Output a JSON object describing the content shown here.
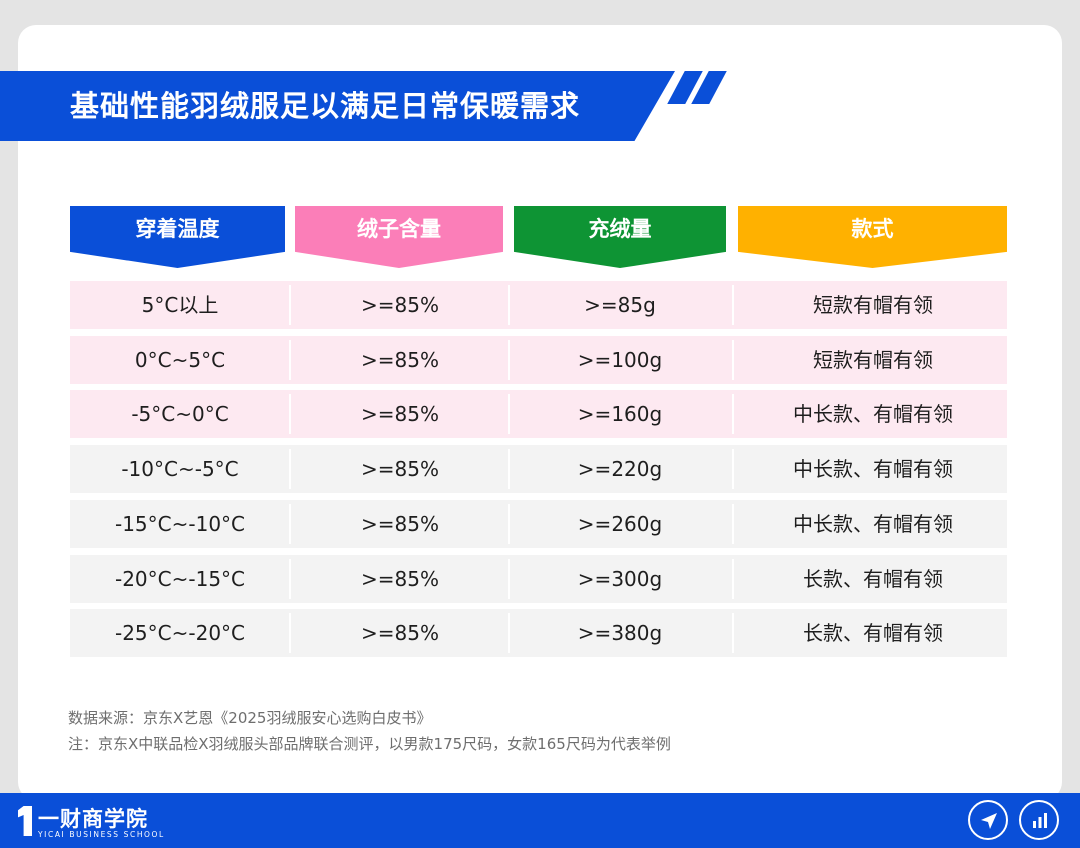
{
  "title": "基础性能羽绒服足以满足日常保暖需求",
  "chart_data": {
    "type": "table",
    "columns": [
      {
        "label": "穿着温度",
        "color": "#0a4fd8"
      },
      {
        "label": "绒子含量",
        "color": "#fb7eb8"
      },
      {
        "label": "充绒量",
        "color": "#0e9434"
      },
      {
        "label": "款式",
        "color": "#ffb100"
      }
    ],
    "rows": [
      {
        "temp": "5°C以上",
        "down": ">=85%",
        "fill": ">=85g",
        "style": "短款有帽有领",
        "bg": "#fde9f1"
      },
      {
        "temp": "0°C~5°C",
        "down": ">=85%",
        "fill": ">=100g",
        "style": "短款有帽有领",
        "bg": "#fde9f1"
      },
      {
        "temp": "-5°C~0°C",
        "down": ">=85%",
        "fill": ">=160g",
        "style": "中长款、有帽有领",
        "bg": "#fde9f1"
      },
      {
        "temp": "-10°C~-5°C",
        "down": ">=85%",
        "fill": ">=220g",
        "style": "中长款、有帽有领",
        "bg": "#f3f3f3"
      },
      {
        "temp": "-15°C~-10°C",
        "down": ">=85%",
        "fill": ">=260g",
        "style": "中长款、有帽有领",
        "bg": "#f3f3f3"
      },
      {
        "temp": "-20°C~-15°C",
        "down": ">=85%",
        "fill": ">=300g",
        "style": "长款、有帽有领",
        "bg": "#f3f3f3"
      },
      {
        "temp": "-25°C~-20°C",
        "down": ">=85%",
        "fill": ">=380g",
        "style": "长款、有帽有领",
        "bg": "#f3f3f3"
      }
    ]
  },
  "source": "数据来源：京东X艺恩《2025羽绒服安心选购白皮书》",
  "note": "注：京东X中联品检X羽绒服头部品牌联合测评，以男款175尺码，女款165尺码为代表举例",
  "brand": {
    "name": "一财商学院",
    "subtitle": "YICAI BUSINESS SCHOOL"
  },
  "icons": {
    "share": "paper-plane-icon",
    "stats": "bar-chart-icon"
  },
  "colors": {
    "accent": "#0a4fd8"
  }
}
